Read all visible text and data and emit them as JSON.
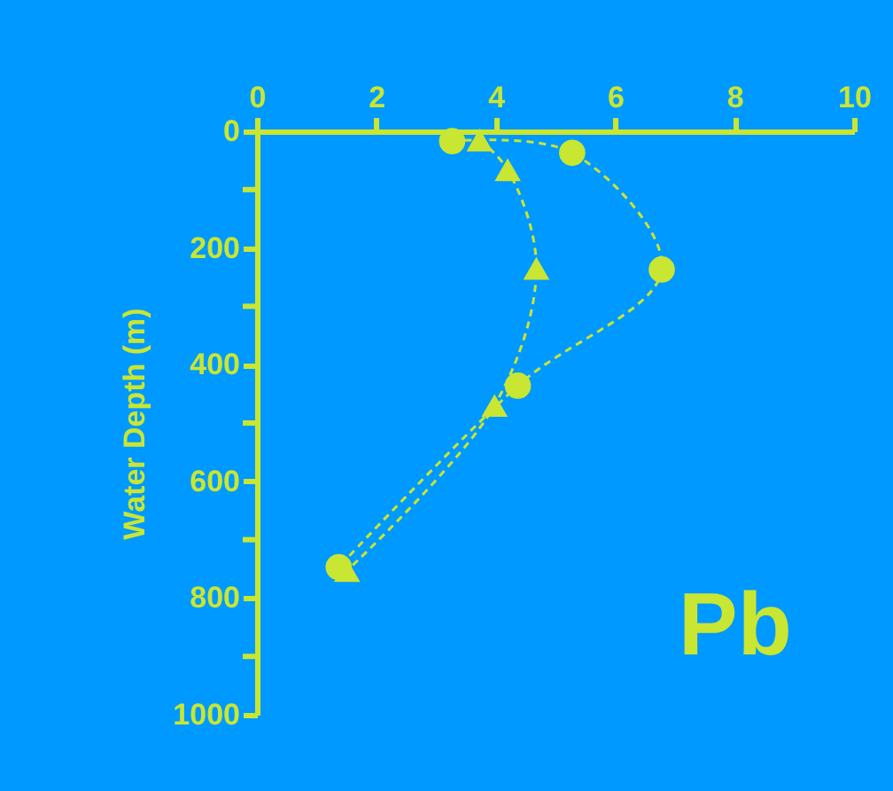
{
  "chart_data": {
    "type": "line",
    "ylabel": "Water Depth (m)",
    "xlim": [
      0,
      10
    ],
    "xticks": [
      0,
      2,
      4,
      6,
      8,
      10
    ],
    "ylim": [
      1000,
      0
    ],
    "yticks": [
      0,
      {
        "value": 100,
        "label": null
      },
      200,
      {
        "value": 300,
        "label": null
      },
      400,
      {
        "value": 500,
        "label": null
      },
      600,
      {
        "value": 700,
        "label": null
      },
      800,
      {
        "value": 900,
        "label": null
      },
      1000
    ],
    "grid": false,
    "line_style": "dashed",
    "annotations": [
      "Pb"
    ],
    "series": [
      {
        "color": "#c8e632",
        "marker": "circle",
        "x": [
          3.27,
          5.28,
          6.78,
          4.37,
          1.37
        ],
        "values": [
          17,
          37,
          237,
          436,
          747
        ]
      },
      {
        "color": "#c8e632",
        "marker": "triangle",
        "x": [
          3.73,
          4.2,
          4.68,
          3.98,
          1.51
        ],
        "values": [
          15,
          66,
          235,
          470,
          753
        ]
      }
    ]
  }
}
